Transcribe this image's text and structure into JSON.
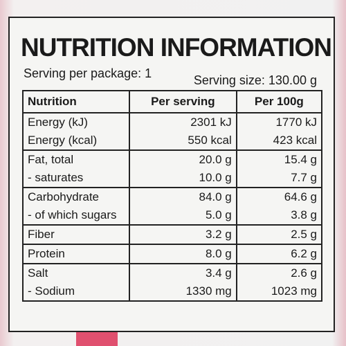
{
  "header": {
    "title": "NUTRITION INFORMATION",
    "serving_per_package": "Serving per package: 1",
    "serving_size": "Serving size: 130.00 g"
  },
  "table": {
    "columns": [
      "Nutrition",
      "Per serving",
      "Per 100g"
    ],
    "rows": [
      [
        "Energy (kJ)",
        "2301 kJ",
        "1770 kJ"
      ],
      [
        "Energy (kcal)",
        "550 kcal",
        "423 kcal"
      ],
      [
        "Fat, total",
        "20.0 g",
        "15.4 g"
      ],
      [
        "- saturates",
        "10.0 g",
        "7.7 g"
      ],
      [
        "Carbohydrate",
        "84.0 g",
        "64.6 g"
      ],
      [
        "- of which sugars",
        "5.0 g",
        "3.8 g"
      ],
      [
        "Fiber",
        "3.2 g",
        "2.5 g"
      ],
      [
        "Protein",
        "8.0 g",
        "6.2 g"
      ],
      [
        "Salt",
        "3.4 g",
        "2.6 g"
      ],
      [
        "- Sodium",
        "1330 mg",
        "1023 mg"
      ]
    ]
  }
}
